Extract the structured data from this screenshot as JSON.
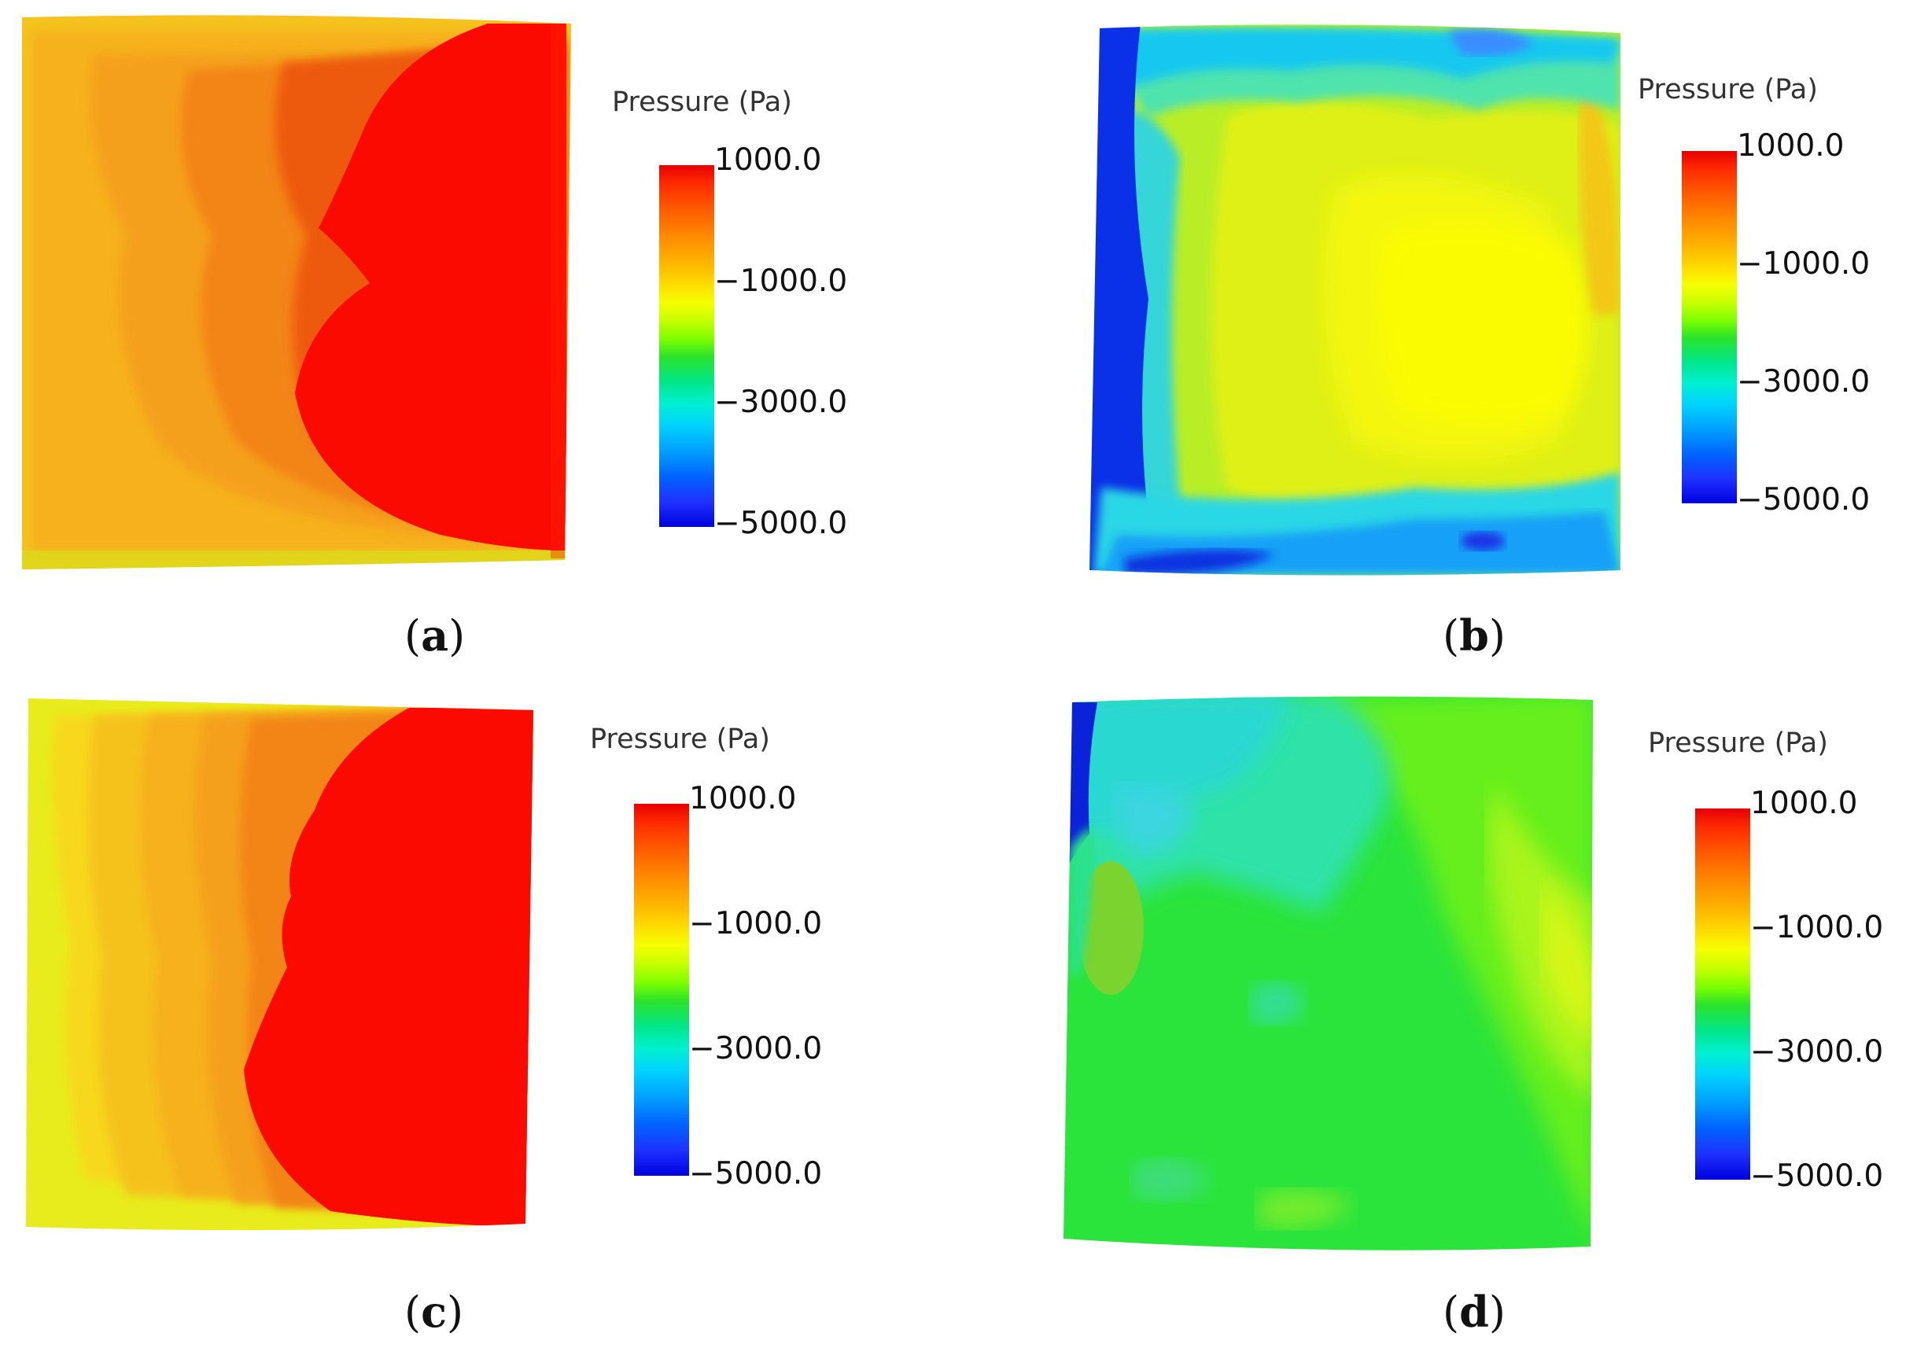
{
  "legend": {
    "title": "Pressure (Pa)",
    "ticks": [
      "1000.0",
      "−1000.0",
      "−3000.0",
      "−5000.0"
    ]
  },
  "panels": [
    {
      "id": "a",
      "caption_open": "(",
      "caption_letter": "a",
      "caption_close": ")"
    },
    {
      "id": "b",
      "caption_open": "(",
      "caption_letter": "b",
      "caption_close": ")"
    },
    {
      "id": "c",
      "caption_open": "(",
      "caption_letter": "c",
      "caption_close": ")"
    },
    {
      "id": "d",
      "caption_open": "(",
      "caption_letter": "d",
      "caption_close": ")"
    }
  ],
  "colormap": {
    "max": "#e60000",
    "min": "#0000dc"
  }
}
